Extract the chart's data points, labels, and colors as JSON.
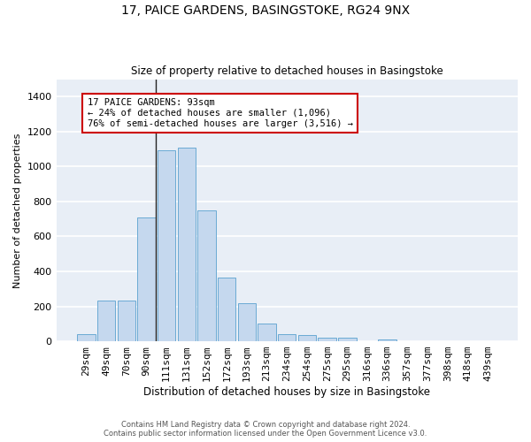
{
  "title1": "17, PAICE GARDENS, BASINGSTOKE, RG24 9NX",
  "title2": "Size of property relative to detached houses in Basingstoke",
  "xlabel": "Distribution of detached houses by size in Basingstoke",
  "ylabel": "Number of detached properties",
  "categories": [
    "29sqm",
    "49sqm",
    "70sqm",
    "90sqm",
    "111sqm",
    "131sqm",
    "152sqm",
    "172sqm",
    "193sqm",
    "213sqm",
    "234sqm",
    "254sqm",
    "275sqm",
    "295sqm",
    "316sqm",
    "336sqm",
    "357sqm",
    "377sqm",
    "398sqm",
    "418sqm",
    "439sqm"
  ],
  "values": [
    40,
    235,
    235,
    710,
    1095,
    1110,
    748,
    365,
    220,
    100,
    40,
    35,
    22,
    20,
    0,
    12,
    0,
    0,
    0,
    0,
    0
  ],
  "bar_color": "#c5d8ee",
  "bar_edge_color": "#6aaad4",
  "bg_color": "#e8eef6",
  "grid_color": "#ffffff",
  "annotation_text": "17 PAICE GARDENS: 93sqm\n← 24% of detached houses are smaller (1,096)\n76% of semi-detached houses are larger (3,516) →",
  "annotation_box_color": "#ffffff",
  "annotation_box_edge": "#cc0000",
  "ylim": [
    0,
    1500
  ],
  "yticks": [
    0,
    200,
    400,
    600,
    800,
    1000,
    1200,
    1400
  ],
  "footnote1": "Contains HM Land Registry data © Crown copyright and database right 2024.",
  "footnote2": "Contains public sector information licensed under the Open Government Licence v3.0."
}
